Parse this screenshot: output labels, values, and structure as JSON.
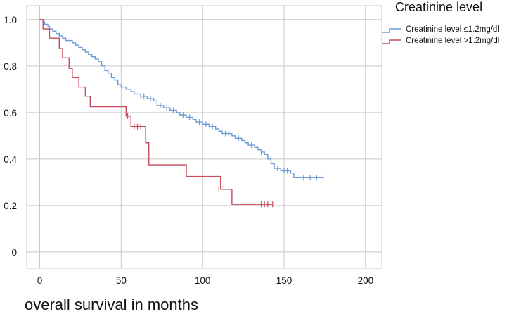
{
  "chart_data": {
    "type": "line",
    "title": "",
    "xlabel": "overall survival in months",
    "ylabel": "",
    "xlim": [
      -8,
      210
    ],
    "ylim": [
      -0.07,
      1.06
    ],
    "x_ticks": [
      0,
      50,
      100,
      150,
      200
    ],
    "x_tick_labels": [
      "0",
      "50",
      "100",
      "150",
      "200"
    ],
    "y_ticks": [
      0,
      0.2,
      0.4,
      0.6,
      0.8,
      1.0
    ],
    "y_tick_labels": [
      "0",
      "0.2",
      "0.4",
      "0.6",
      "0.8",
      "1.0"
    ],
    "grid": true,
    "legend_title": "Creatinine level",
    "legend_position": "top-right",
    "series": [
      {
        "name": "Creatinine level ≤1.2mg/dl",
        "color": "#6a9bd8",
        "step_points": [
          [
            0,
            1.0
          ],
          [
            2,
            0.99
          ],
          [
            3,
            0.98
          ],
          [
            5,
            0.97
          ],
          [
            6,
            0.96
          ],
          [
            8,
            0.95
          ],
          [
            10,
            0.94
          ],
          [
            12,
            0.93
          ],
          [
            14,
            0.92
          ],
          [
            16,
            0.91
          ],
          [
            20,
            0.9
          ],
          [
            22,
            0.89
          ],
          [
            24,
            0.88
          ],
          [
            26,
            0.87
          ],
          [
            28,
            0.86
          ],
          [
            30,
            0.85
          ],
          [
            32,
            0.84
          ],
          [
            34,
            0.83
          ],
          [
            36,
            0.82
          ],
          [
            38,
            0.8
          ],
          [
            40,
            0.78
          ],
          [
            42,
            0.77
          ],
          [
            44,
            0.75
          ],
          [
            46,
            0.74
          ],
          [
            48,
            0.72
          ],
          [
            50,
            0.71
          ],
          [
            53,
            0.7
          ],
          [
            56,
            0.69
          ],
          [
            58,
            0.68
          ],
          [
            62,
            0.67
          ],
          [
            66,
            0.66
          ],
          [
            70,
            0.65
          ],
          [
            72,
            0.63
          ],
          [
            76,
            0.62
          ],
          [
            80,
            0.61
          ],
          [
            84,
            0.6
          ],
          [
            86,
            0.59
          ],
          [
            90,
            0.58
          ],
          [
            94,
            0.57
          ],
          [
            96,
            0.56
          ],
          [
            100,
            0.55
          ],
          [
            104,
            0.54
          ],
          [
            108,
            0.53
          ],
          [
            110,
            0.52
          ],
          [
            112,
            0.51
          ],
          [
            118,
            0.5
          ],
          [
            120,
            0.49
          ],
          [
            124,
            0.48
          ],
          [
            126,
            0.47
          ],
          [
            128,
            0.46
          ],
          [
            132,
            0.45
          ],
          [
            134,
            0.44
          ],
          [
            136,
            0.43
          ],
          [
            138,
            0.42
          ],
          [
            140,
            0.4
          ],
          [
            142,
            0.38
          ],
          [
            144,
            0.36
          ],
          [
            148,
            0.35
          ],
          [
            154,
            0.34
          ],
          [
            156,
            0.32
          ],
          [
            174,
            0.32
          ]
        ],
        "censor_points": [
          [
            62,
            0.67
          ],
          [
            64,
            0.67
          ],
          [
            68,
            0.66
          ],
          [
            74,
            0.63
          ],
          [
            78,
            0.62
          ],
          [
            82,
            0.61
          ],
          [
            88,
            0.59
          ],
          [
            92,
            0.58
          ],
          [
            98,
            0.56
          ],
          [
            102,
            0.55
          ],
          [
            106,
            0.54
          ],
          [
            114,
            0.51
          ],
          [
            116,
            0.51
          ],
          [
            122,
            0.49
          ],
          [
            130,
            0.46
          ],
          [
            136,
            0.43
          ],
          [
            146,
            0.36
          ],
          [
            150,
            0.35
          ],
          [
            152,
            0.35
          ],
          [
            158,
            0.32
          ],
          [
            162,
            0.32
          ],
          [
            166,
            0.32
          ],
          [
            170,
            0.32
          ],
          [
            174,
            0.32
          ]
        ]
      },
      {
        "name": "Creatinine level >1.2mg/dl",
        "color": "#c84b5a",
        "step_points": [
          [
            0,
            1.0
          ],
          [
            2,
            0.96
          ],
          [
            6,
            0.92
          ],
          [
            12,
            0.875
          ],
          [
            14,
            0.835
          ],
          [
            18,
            0.79
          ],
          [
            20,
            0.75
          ],
          [
            24,
            0.71
          ],
          [
            28,
            0.67
          ],
          [
            31,
            0.625
          ],
          [
            53,
            0.585
          ],
          [
            56,
            0.54
          ],
          [
            65,
            0.47
          ],
          [
            67,
            0.375
          ],
          [
            90,
            0.325
          ],
          [
            111,
            0.27
          ],
          [
            118,
            0.205
          ],
          [
            143,
            0.205
          ]
        ],
        "censor_points": [
          [
            54,
            0.585
          ],
          [
            58,
            0.54
          ],
          [
            60,
            0.54
          ],
          [
            62,
            0.54
          ],
          [
            110,
            0.27
          ],
          [
            136,
            0.205
          ],
          [
            138,
            0.205
          ],
          [
            140,
            0.205
          ],
          [
            143,
            0.205
          ]
        ]
      }
    ]
  }
}
